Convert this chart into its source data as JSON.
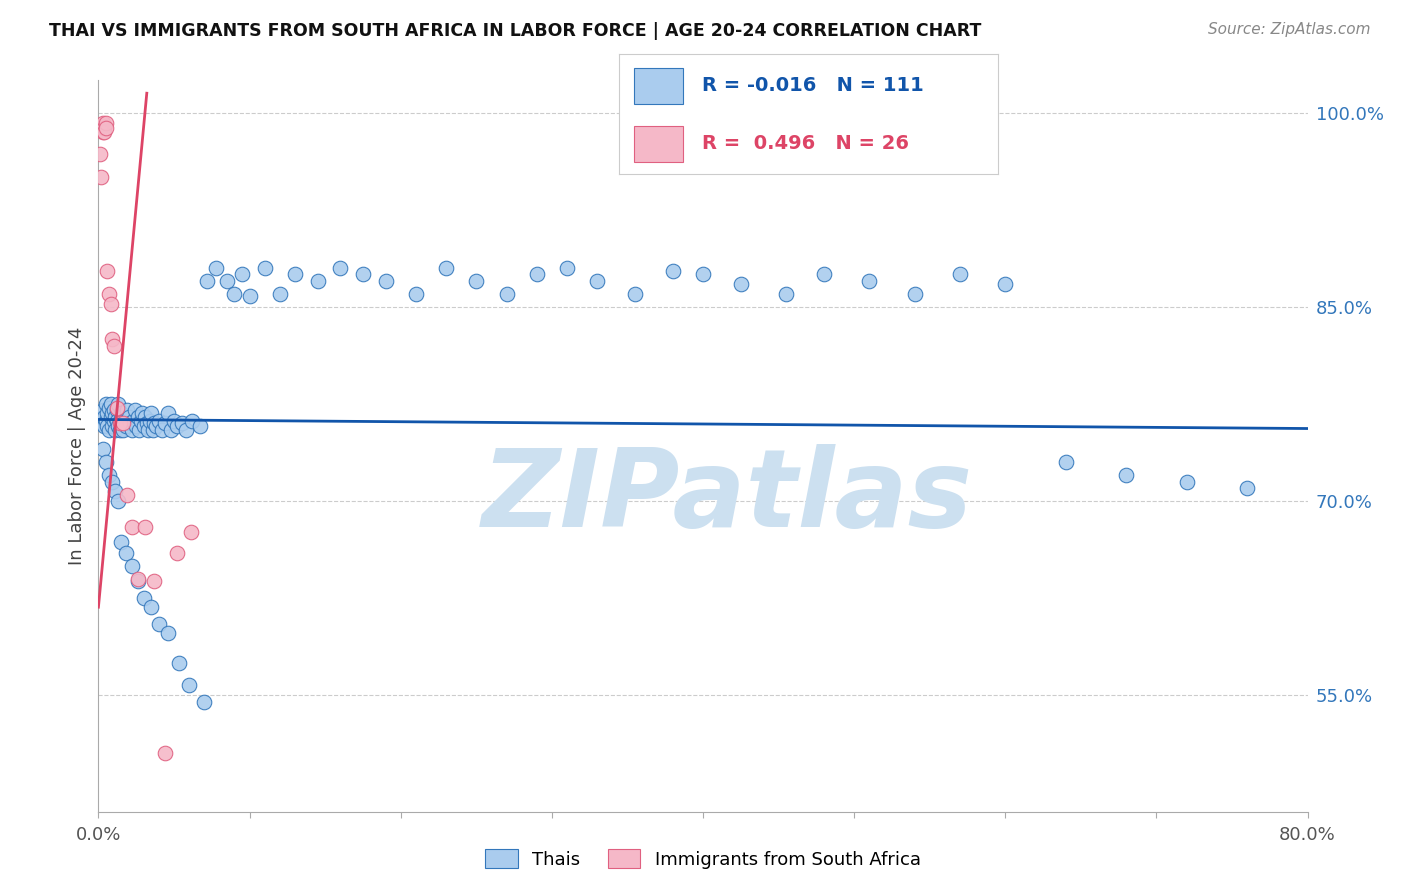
{
  "title": "THAI VS IMMIGRANTS FROM SOUTH AFRICA IN LABOR FORCE | AGE 20-24 CORRELATION CHART",
  "source": "Source: ZipAtlas.com",
  "ylabel": "In Labor Force | Age 20-24",
  "xmin": 0.0,
  "xmax": 0.8,
  "ymin": 0.46,
  "ymax": 1.025,
  "yticks": [
    0.55,
    0.7,
    0.85,
    1.0
  ],
  "ytick_labels": [
    "55.0%",
    "70.0%",
    "85.0%",
    "100.0%"
  ],
  "legend1_r": "-0.016",
  "legend1_n": "111",
  "legend2_r": "0.496",
  "legend2_n": "26",
  "blue_fill": "#aaccee",
  "blue_edge": "#3377bb",
  "pink_fill": "#f5b8c8",
  "pink_edge": "#e06080",
  "blue_line_color": "#1155aa",
  "pink_line_color": "#dd4466",
  "legend_r1_color": "#1155aa",
  "legend_r2_color": "#dd4466",
  "watermark_color": "#cce0f0",
  "watermark_text": "ZIPatlas",
  "blue_x": [
    0.002,
    0.003,
    0.004,
    0.004,
    0.005,
    0.005,
    0.006,
    0.006,
    0.007,
    0.007,
    0.008,
    0.008,
    0.009,
    0.009,
    0.01,
    0.01,
    0.011,
    0.011,
    0.012,
    0.012,
    0.013,
    0.013,
    0.014,
    0.014,
    0.015,
    0.015,
    0.016,
    0.017,
    0.018,
    0.019,
    0.02,
    0.021,
    0.022,
    0.023,
    0.024,
    0.025,
    0.026,
    0.027,
    0.028,
    0.029,
    0.03,
    0.031,
    0.032,
    0.033,
    0.034,
    0.035,
    0.036,
    0.037,
    0.038,
    0.04,
    0.042,
    0.044,
    0.046,
    0.048,
    0.05,
    0.052,
    0.055,
    0.058,
    0.062,
    0.067,
    0.072,
    0.078,
    0.085,
    0.09,
    0.095,
    0.1,
    0.11,
    0.12,
    0.13,
    0.145,
    0.16,
    0.175,
    0.19,
    0.21,
    0.23,
    0.25,
    0.27,
    0.29,
    0.31,
    0.33,
    0.355,
    0.38,
    0.4,
    0.425,
    0.455,
    0.48,
    0.51,
    0.54,
    0.57,
    0.6,
    0.64,
    0.68,
    0.72,
    0.76,
    0.003,
    0.005,
    0.007,
    0.009,
    0.011,
    0.013,
    0.015,
    0.018,
    0.022,
    0.026,
    0.03,
    0.035,
    0.04,
    0.046,
    0.053,
    0.06,
    0.07
  ],
  "blue_y": [
    0.76,
    0.77,
    0.765,
    0.758,
    0.762,
    0.775,
    0.768,
    0.758,
    0.772,
    0.755,
    0.765,
    0.775,
    0.758,
    0.768,
    0.762,
    0.77,
    0.765,
    0.755,
    0.77,
    0.762,
    0.758,
    0.775,
    0.762,
    0.755,
    0.768,
    0.76,
    0.755,
    0.762,
    0.758,
    0.77,
    0.765,
    0.76,
    0.755,
    0.762,
    0.77,
    0.758,
    0.765,
    0.755,
    0.762,
    0.768,
    0.758,
    0.765,
    0.76,
    0.755,
    0.762,
    0.768,
    0.755,
    0.76,
    0.758,
    0.762,
    0.755,
    0.76,
    0.768,
    0.755,
    0.762,
    0.758,
    0.76,
    0.755,
    0.762,
    0.758,
    0.87,
    0.88,
    0.87,
    0.86,
    0.875,
    0.858,
    0.88,
    0.86,
    0.875,
    0.87,
    0.88,
    0.875,
    0.87,
    0.86,
    0.88,
    0.87,
    0.86,
    0.875,
    0.88,
    0.87,
    0.86,
    0.878,
    0.875,
    0.868,
    0.86,
    0.875,
    0.87,
    0.86,
    0.875,
    0.868,
    0.73,
    0.72,
    0.715,
    0.71,
    0.74,
    0.73,
    0.72,
    0.715,
    0.708,
    0.7,
    0.668,
    0.66,
    0.65,
    0.638,
    0.625,
    0.618,
    0.605,
    0.598,
    0.575,
    0.558,
    0.545
  ],
  "pink_x": [
    0.001,
    0.002,
    0.002,
    0.003,
    0.003,
    0.003,
    0.004,
    0.004,
    0.005,
    0.005,
    0.006,
    0.007,
    0.008,
    0.009,
    0.01,
    0.012,
    0.014,
    0.016,
    0.019,
    0.022,
    0.026,
    0.031,
    0.037,
    0.044,
    0.052,
    0.061
  ],
  "pink_y": [
    0.968,
    0.95,
    0.99,
    0.99,
    0.985,
    0.992,
    0.988,
    0.985,
    0.992,
    0.988,
    0.878,
    0.86,
    0.852,
    0.825,
    0.82,
    0.772,
    0.76,
    0.76,
    0.705,
    0.68,
    0.64,
    0.68,
    0.638,
    0.505,
    0.66,
    0.676
  ],
  "blue_trend_x0": 0.0,
  "blue_trend_x1": 0.8,
  "blue_trend_y0": 0.763,
  "blue_trend_y1": 0.756,
  "pink_trend_x0": 0.0,
  "pink_trend_x1": 0.032,
  "pink_trend_y0": 0.618,
  "pink_trend_y1": 1.015
}
